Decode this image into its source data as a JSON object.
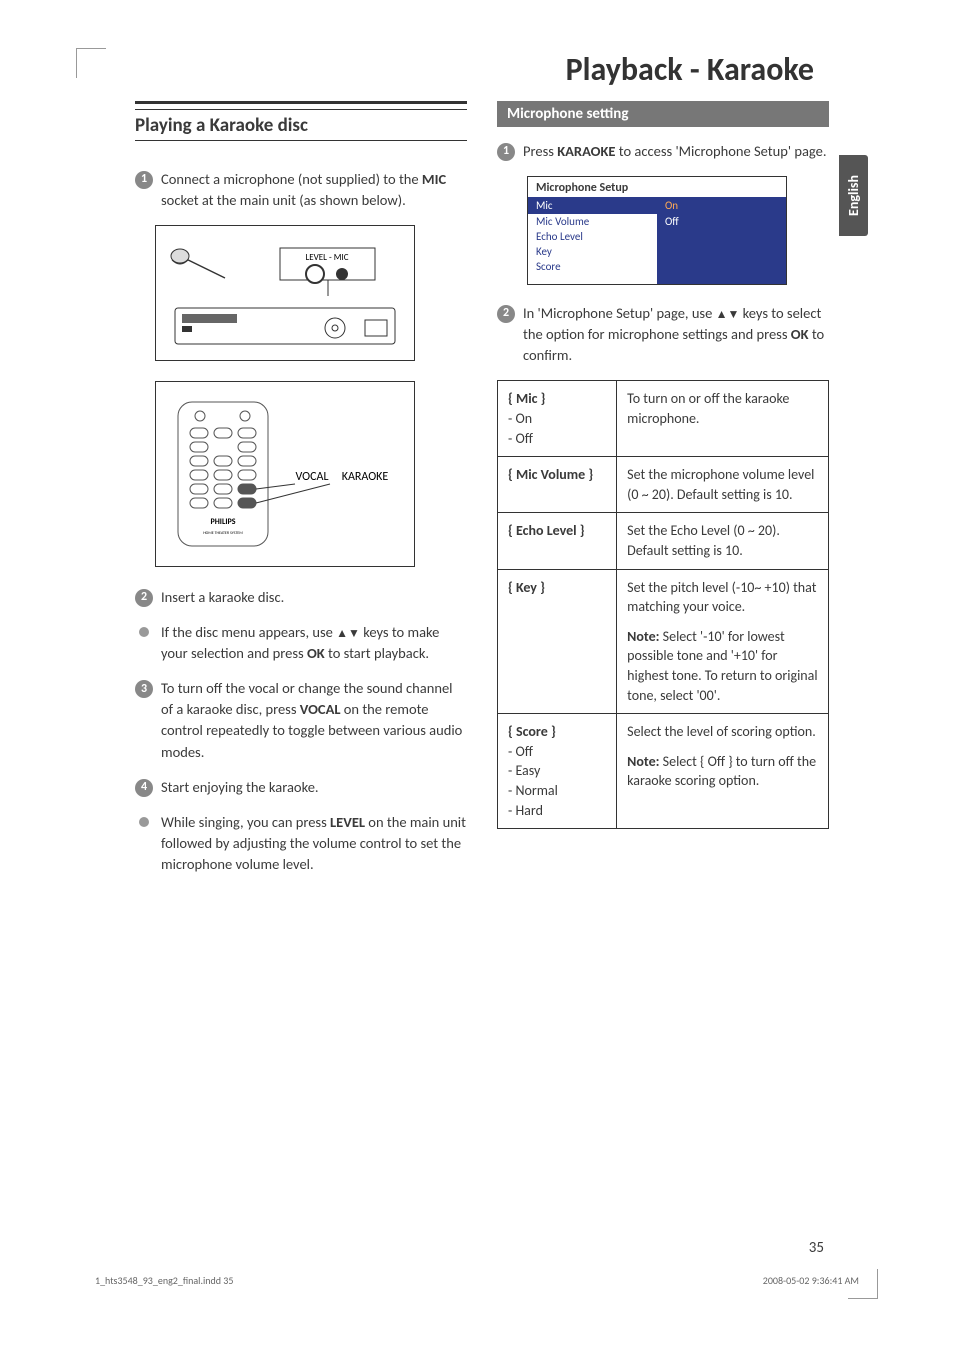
{
  "page_title": "Playback - Karaoke",
  "side_tab": "English",
  "left": {
    "heading": "Playing a Karaoke disc",
    "step1": "Connect a microphone (not supplied) to the <b>MIC</b> socket at the main unit (as shown below).",
    "illus_label_level_mic": "LEVEL - MIC",
    "illus_remote_vocal": "VOCAL",
    "illus_remote_karaoke": "KARAOKE",
    "illus_brand": "PHILIPS",
    "step2": "Insert a karaoke disc.",
    "bullet1": "If the disc menu appears, use <span class='tri'>▲▼</span> keys to make your selection and press <b>OK</b> to start playback.",
    "step3": "To turn off the vocal or change the sound channel of a karaoke disc, press <b>VOCAL</b> on the remote control repeatedly to toggle between various audio modes.",
    "step4": "Start enjoying the karaoke.",
    "bullet2": "While singing, you can press <b>LEVEL</b> on the main unit followed by adjusting the volume control to set the microphone volume level."
  },
  "right": {
    "subheading": "Microphone setting",
    "step1": "Press <b>KARAOKE</b> to access 'Microphone Setup' page.",
    "setup_title": "Microphone Setup",
    "setup_rows": {
      "selected_left": "Mic",
      "selected_right_on": "On",
      "selected_right_off": "Off",
      "items": [
        "Mic Volume",
        "Echo Level",
        "Key",
        "Score"
      ]
    },
    "step2": "In 'Microphone Setup' page, use <span class='tri'>▲▼</span> keys to select the option for microphone settings and press <b>OK</b> to confirm.",
    "table": [
      {
        "label": "{ Mic }",
        "sub": [
          "- On",
          "- Off"
        ],
        "desc": "To turn on or off the karaoke microphone."
      },
      {
        "label": "{ Mic Volume }",
        "sub": [],
        "desc": "Set the microphone volume level (0 ~ 20). Default setting is 10."
      },
      {
        "label": "{ Echo Level }",
        "sub": [],
        "desc": "Set the Echo Level (0 ~ 20).  Default setting is 10."
      },
      {
        "label": "{ Key }",
        "sub": [],
        "desc": "Set the pitch level (-10~ +10) that matching your voice.",
        "note": "<b>Note:</b>  Select '-10' for lowest possible tone and '+10' for highest tone.  To return to original tone, select '00'."
      },
      {
        "label": "{ Score }",
        "sub": [
          "- Off",
          "- Easy",
          "- Normal",
          "- Hard"
        ],
        "desc": "Select the level of scoring option.",
        "note": "<b>Note:</b>  Select { Off } to turn off the karaoke scoring option."
      }
    ]
  },
  "page_number": "35",
  "footer_left": "1_hts3548_93_eng2_final.indd   35",
  "footer_right": "2008-05-02   9:36:41 AM"
}
